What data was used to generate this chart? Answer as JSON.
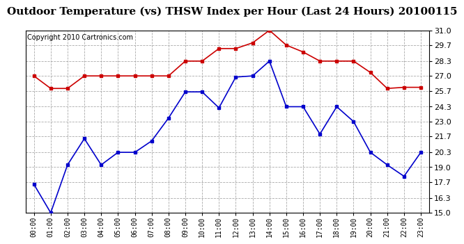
{
  "title": "Outdoor Temperature (vs) THSW Index per Hour (Last 24 Hours) 20100115",
  "copyright": "Copyright 2010 Cartronics.com",
  "hours": [
    "00:00",
    "01:00",
    "02:00",
    "03:00",
    "04:00",
    "05:00",
    "06:00",
    "07:00",
    "08:00",
    "09:00",
    "10:00",
    "11:00",
    "12:00",
    "13:00",
    "14:00",
    "15:00",
    "16:00",
    "17:00",
    "18:00",
    "19:00",
    "20:00",
    "21:00",
    "22:00",
    "23:00"
  ],
  "blue_data": [
    17.5,
    15.0,
    19.2,
    21.5,
    19.2,
    20.3,
    20.3,
    21.3,
    23.3,
    25.6,
    25.6,
    24.2,
    26.9,
    27.0,
    28.3,
    24.3,
    24.3,
    21.9,
    24.3,
    23.0,
    20.3,
    19.2,
    18.2,
    20.3
  ],
  "red_data": [
    27.0,
    25.9,
    25.9,
    27.0,
    27.0,
    27.0,
    27.0,
    27.0,
    27.0,
    28.3,
    28.3,
    29.4,
    29.4,
    29.9,
    31.0,
    29.7,
    29.1,
    28.3,
    28.3,
    28.3,
    27.3,
    25.9,
    26.0,
    26.0
  ],
  "ylim": [
    15.0,
    31.0
  ],
  "yticks": [
    15.0,
    16.3,
    17.7,
    19.0,
    20.3,
    21.7,
    23.0,
    24.3,
    25.7,
    27.0,
    28.3,
    29.7,
    31.0
  ],
  "blue_color": "#0000cc",
  "red_color": "#cc0000",
  "bg_color": "#ffffff",
  "grid_color": "#aaaaaa",
  "title_fontsize": 11,
  "copyright_fontsize": 7,
  "tick_fontsize": 7,
  "ytick_fontsize": 8
}
